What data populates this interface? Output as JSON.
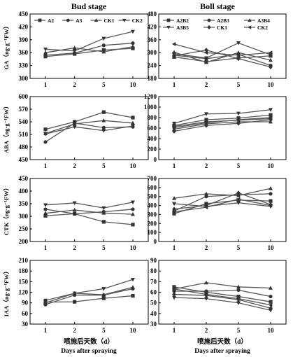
{
  "column_titles": [
    "Bud stage",
    "Boll stage"
  ],
  "x_axis": {
    "label_cn": "喷施后天数（d）",
    "label_en": "Days after spraying",
    "ticks": [
      "1",
      "2",
      "5",
      "10"
    ]
  },
  "colors": {
    "line": "#555555",
    "axis": "#000000"
  },
  "chart_data": [
    {
      "type": "line",
      "panel": "bud-ga",
      "ylabel": "GA（ng·g⁻¹FW）",
      "ylim": [
        300,
        450
      ],
      "yticks": [
        300,
        330,
        360,
        390,
        420,
        450
      ],
      "categories": [
        "1",
        "2",
        "5",
        "10"
      ],
      "legend": {
        "placement": "top",
        "columns": 4
      },
      "series": [
        {
          "name": "A2",
          "marker": "square",
          "values": [
            351,
            357,
            366,
            370
          ]
        },
        {
          "name": "A3",
          "marker": "circle",
          "values": [
            354,
            359,
            377,
            382
          ]
        },
        {
          "name": "CK1",
          "marker": "triangle-up",
          "values": [
            360,
            371,
            362,
            374
          ]
        },
        {
          "name": "CK2",
          "marker": "triangle-down",
          "values": [
            368,
            364,
            393,
            409
          ]
        }
      ]
    },
    {
      "type": "line",
      "panel": "boll-ga",
      "ylabel": "",
      "ylim": [
        180,
        480
      ],
      "yticks": [
        180,
        240,
        300,
        360,
        420,
        480
      ],
      "categories": [
        "1",
        "2",
        "5",
        "10"
      ],
      "legend": {
        "placement": "top",
        "columns": 3
      },
      "series": [
        {
          "name": "A2B2",
          "marker": "square",
          "values": [
            280,
            258,
            275,
            285
          ]
        },
        {
          "name": "A2B3",
          "marker": "circle",
          "values": [
            288,
            272,
            292,
            240
          ]
        },
        {
          "name": "A3B4",
          "marker": "triangle-up",
          "values": [
            302,
            255,
            300,
            265
          ]
        },
        {
          "name": "A3B5",
          "marker": "triangle-down",
          "values": [
            295,
            275,
            345,
            290
          ]
        },
        {
          "name": "CK1",
          "marker": "diamond",
          "values": [
            285,
            312,
            272,
            233
          ]
        },
        {
          "name": "CK2",
          "marker": "triangle-left",
          "values": [
            340,
            300,
            288,
            300
          ]
        }
      ]
    },
    {
      "type": "line",
      "panel": "bud-aba",
      "ylabel": "ABA（ng·g⁻¹FW）",
      "ylim": [
        450,
        600
      ],
      "yticks": [
        450,
        480,
        510,
        540,
        570,
        600
      ],
      "categories": [
        "1",
        "2",
        "5",
        "10"
      ],
      "series": [
        {
          "name": "A2",
          "marker": "square",
          "values": [
            522,
            540,
            563,
            550
          ]
        },
        {
          "name": "A3",
          "marker": "circle",
          "values": [
            492,
            537,
            526,
            528
          ]
        },
        {
          "name": "CK1",
          "marker": "triangle-up",
          "values": [
            512,
            535,
            543,
            537
          ]
        },
        {
          "name": "CK2",
          "marker": "triangle-down",
          "values": [
            511,
            528,
            519,
            530
          ]
        }
      ]
    },
    {
      "type": "line",
      "panel": "boll-aba",
      "ylabel": "",
      "ylim": [
        0,
        1200
      ],
      "yticks": [
        0,
        200,
        400,
        600,
        800,
        1000,
        1200
      ],
      "categories": [
        "1",
        "2",
        "5",
        "10"
      ],
      "series": [
        {
          "name": "A2B2",
          "marker": "square",
          "values": [
            650,
            760,
            790,
            850
          ]
        },
        {
          "name": "A2B3",
          "marker": "circle",
          "values": [
            610,
            700,
            760,
            800
          ]
        },
        {
          "name": "A3B4",
          "marker": "triangle-up",
          "values": [
            580,
            680,
            720,
            720
          ]
        },
        {
          "name": "A3B5",
          "marker": "triangle-down",
          "values": [
            690,
            870,
            880,
            950
          ]
        },
        {
          "name": "CK1",
          "marker": "diamond",
          "values": [
            540,
            650,
            690,
            760
          ]
        },
        {
          "name": "CK2",
          "marker": "triangle-left",
          "values": [
            630,
            720,
            750,
            780
          ]
        }
      ]
    },
    {
      "type": "line",
      "panel": "bud-ctk",
      "ylabel": "CTK（ng·g⁻¹FW）",
      "ylim": [
        200,
        450
      ],
      "yticks": [
        200,
        250,
        300,
        350,
        400,
        450
      ],
      "categories": [
        "1",
        "2",
        "5",
        "10"
      ],
      "series": [
        {
          "name": "A2",
          "marker": "square",
          "values": [
            302,
            310,
            278,
            267
          ]
        },
        {
          "name": "A3",
          "marker": "circle",
          "values": [
            328,
            310,
            318,
            328
          ]
        },
        {
          "name": "CK1",
          "marker": "triangle-up",
          "values": [
            312,
            325,
            313,
            308
          ]
        },
        {
          "name": "CK2",
          "marker": "triangle-down",
          "values": [
            345,
            353,
            333,
            356
          ]
        }
      ]
    },
    {
      "type": "line",
      "panel": "boll-ctk",
      "ylabel": "",
      "ylim": [
        0,
        700
      ],
      "yticks": [
        0,
        100,
        200,
        300,
        400,
        500,
        600,
        700
      ],
      "categories": [
        "1",
        "2",
        "5",
        "10"
      ],
      "series": [
        {
          "name": "A2B2",
          "marker": "square",
          "values": [
            310,
            420,
            460,
            450
          ]
        },
        {
          "name": "A2B3",
          "marker": "circle",
          "values": [
            340,
            500,
            520,
            530
          ]
        },
        {
          "name": "A3B4",
          "marker": "triangle-up",
          "values": [
            480,
            530,
            510,
            590
          ]
        },
        {
          "name": "A3B5",
          "marker": "triangle-down",
          "values": [
            420,
            390,
            430,
            390
          ]
        },
        {
          "name": "CK1",
          "marker": "diamond",
          "values": [
            360,
            400,
            540,
            410
          ]
        },
        {
          "name": "CK2",
          "marker": "triangle-left",
          "values": [
            330,
            380,
            470,
            400
          ]
        }
      ]
    },
    {
      "type": "line",
      "panel": "bud-iaa",
      "ylabel": "IAA（ng·g⁻¹FW）",
      "ylim": [
        30,
        210
      ],
      "yticks": [
        30,
        60,
        90,
        120,
        150,
        180,
        210
      ],
      "categories": [
        "1",
        "2",
        "5",
        "10"
      ],
      "series": [
        {
          "name": "A2",
          "marker": "square",
          "values": [
            92,
            93,
            103,
            110
          ]
        },
        {
          "name": "A3",
          "marker": "circle",
          "values": [
            85,
            112,
            112,
            130
          ]
        },
        {
          "name": "CK1",
          "marker": "triangle-up",
          "values": [
            90,
            117,
            113,
            134
          ]
        },
        {
          "name": "CK2",
          "marker": "triangle-down",
          "values": [
            97,
            117,
            130,
            156
          ]
        }
      ]
    },
    {
      "type": "line",
      "panel": "boll-iaa",
      "ylabel": "",
      "ylim": [
        30,
        90
      ],
      "yticks": [
        30,
        40,
        50,
        60,
        70,
        80,
        90
      ],
      "categories": [
        "1",
        "2",
        "5",
        "10"
      ],
      "series": [
        {
          "name": "A2B2",
          "marker": "square",
          "values": [
            65,
            60,
            56,
            51
          ]
        },
        {
          "name": "A2B3",
          "marker": "circle",
          "values": [
            61,
            61,
            62,
            56
          ]
        },
        {
          "name": "A3B4",
          "marker": "triangle-up",
          "values": [
            63,
            69,
            65,
            64
          ]
        },
        {
          "name": "A3B5",
          "marker": "triangle-down",
          "values": [
            55,
            54,
            50,
            43
          ]
        },
        {
          "name": "CK1",
          "marker": "diamond",
          "values": [
            58,
            57,
            53,
            45
          ]
        },
        {
          "name": "CK2",
          "marker": "triangle-left",
          "values": [
            63,
            58,
            54,
            48
          ]
        }
      ]
    }
  ]
}
